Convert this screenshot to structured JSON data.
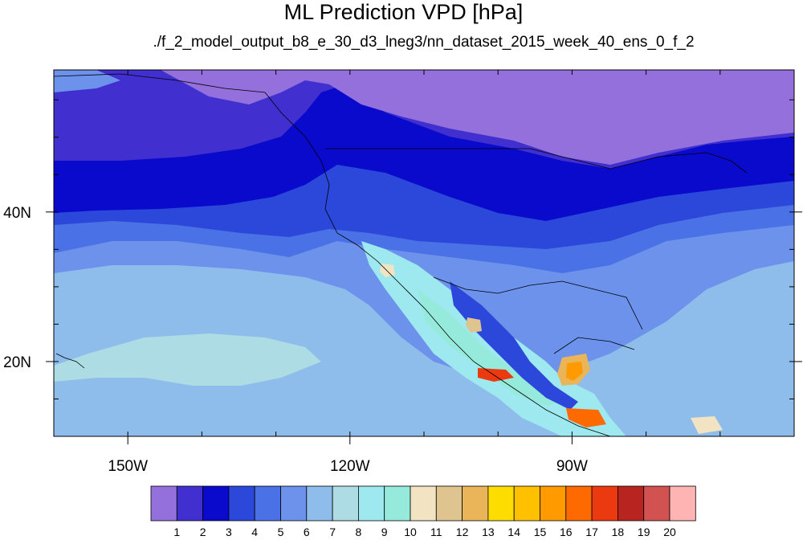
{
  "title": "ML Prediction VPD [hPa]",
  "subtitle": "./f_2_model_output_b8_e_30_d3_lneg3/nn_dataset_2015_week_40_ens_0_f_2",
  "map": {
    "projection": "cylindrical-equidistant",
    "lon_range": [
      -160,
      -60
    ],
    "lat_range": [
      10,
      59
    ],
    "x_ticks": [
      {
        "lon": -150,
        "label": "150W"
      },
      {
        "lon": -120,
        "label": "120W"
      },
      {
        "lon": -90,
        "label": "90W"
      }
    ],
    "y_ticks": [
      {
        "lat": 40,
        "label": "40N"
      },
      {
        "lat": 20,
        "label": "20N"
      }
    ]
  },
  "colorbar": {
    "levels": [
      "1",
      "2",
      "3",
      "4",
      "5",
      "6",
      "7",
      "8",
      "9",
      "10",
      "11",
      "12",
      "13",
      "14",
      "15",
      "16",
      "17",
      "18",
      "19",
      "20"
    ],
    "colors": [
      "#9370db",
      "#4130cf",
      "#0a0acd",
      "#2b48db",
      "#4a72e6",
      "#6c92ec",
      "#8fbdeb",
      "#aedce4",
      "#9ee9ef",
      "#96eadc",
      "#f2e4c2",
      "#e0c490",
      "#e9b558",
      "#fddd00",
      "#ffc000",
      "#ff9a00",
      "#ff6a00",
      "#ec3a10",
      "#b82520",
      "#d25252",
      "#ffb4b4"
    ]
  }
}
